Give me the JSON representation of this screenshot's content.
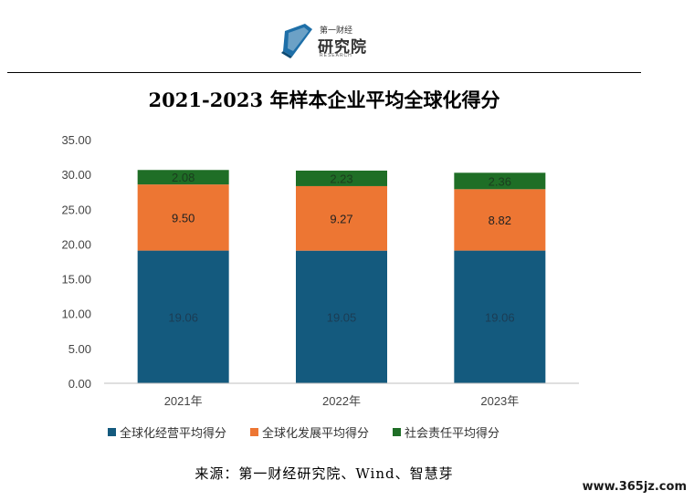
{
  "logo": {
    "line1": "第一财经",
    "line2": "研究院",
    "line3": "RESEARCH"
  },
  "chart_data": {
    "type": "bar",
    "stacked": true,
    "title": "2021-2023 年样本企业平均全球化得分",
    "categories": [
      "2021年",
      "2022年",
      "2023年"
    ],
    "series": [
      {
        "name": "全球化经营平均得分",
        "values": [
          19.06,
          19.05,
          19.06
        ],
        "color": "#145A7E",
        "labels": [
          "19.06",
          "19.05",
          "19.06"
        ]
      },
      {
        "name": "全球化发展平均得分",
        "values": [
          9.5,
          9.27,
          8.82
        ],
        "color": "#ED7633",
        "labels": [
          "9.50",
          "9.27",
          "8.82"
        ]
      },
      {
        "name": "社会责任平均得分",
        "values": [
          2.08,
          2.23,
          2.36
        ],
        "color": "#1F6E26",
        "labels": [
          "2.08",
          "2.23",
          "2.36"
        ]
      }
    ],
    "yticks": [
      "0.00",
      "5.00",
      "10.00",
      "15.00",
      "20.00",
      "25.00",
      "30.00",
      "35.00"
    ],
    "ylim": [
      0,
      35
    ],
    "grid": false,
    "legend_position": "bottom"
  },
  "source": "来源：第一财经研究院、Wind、智慧芽",
  "watermark": "www.365jz.com"
}
